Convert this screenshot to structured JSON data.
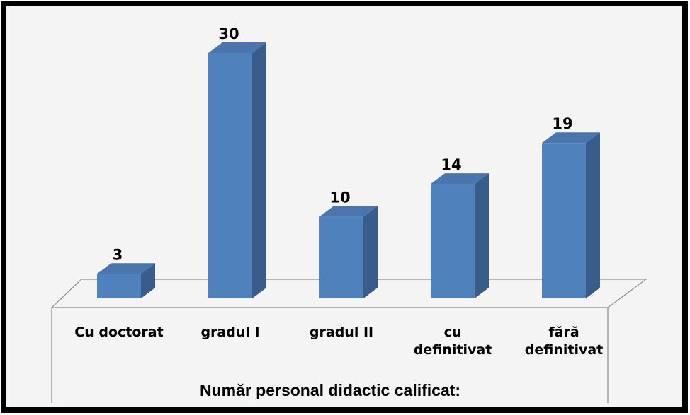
{
  "chart_data": {
    "type": "bar3d",
    "xlabel": "Număr personal didactic calificat:",
    "categories": [
      "Cu doctorat",
      "gradul I",
      "gradul II",
      "cu\ndefinitivat",
      "fără\ndefinitivat"
    ],
    "values": [
      3,
      30,
      10,
      14,
      19
    ],
    "color": "#4f81bd",
    "ylim": [
      0,
      30
    ]
  }
}
